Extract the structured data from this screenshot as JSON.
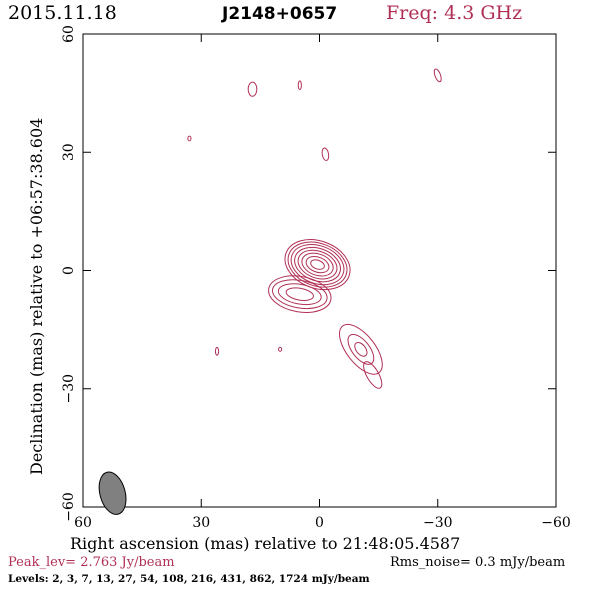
{
  "header": {
    "date": "2015.11.18",
    "source": "J2148+0657",
    "freq": "Freq: 4.3 GHz"
  },
  "chart_data": {
    "type": "contour",
    "xlabel": "Right ascension (mas) relative to 21:48:05.4587",
    "ylabel": "Declination (mas) relative to +06:57:38.604",
    "xlim": [
      60,
      -60
    ],
    "ylim": [
      -60,
      60
    ],
    "xticks": [
      60,
      30,
      0,
      -30,
      -60
    ],
    "yticks": [
      -60,
      -30,
      0,
      30,
      60
    ],
    "x_ticklabels": [
      "60",
      "30",
      "0",
      "−30",
      "−60"
    ],
    "y_ticklabels": [
      "−60",
      "−30",
      "0",
      "30",
      "60"
    ],
    "contour_color": "#b03055",
    "core": {
      "center": [
        0.5,
        1.5
      ],
      "rings": [
        [
          6.0,
          8.5,
          70
        ],
        [
          5.4,
          7.7,
          70
        ],
        [
          4.8,
          6.9,
          70
        ],
        [
          4.1,
          6.0,
          70
        ],
        [
          3.4,
          5.1,
          70
        ],
        [
          2.7,
          4.1,
          70
        ],
        [
          1.9,
          3.0,
          70
        ],
        [
          1.1,
          1.8,
          70
        ]
      ]
    },
    "core_extension": {
      "center": [
        5.0,
        -6.0
      ],
      "rings": [
        [
          4.5,
          8.0,
          80
        ],
        [
          3.5,
          7.0,
          80
        ],
        [
          2.5,
          5.5,
          80
        ],
        [
          1.5,
          3.5,
          80
        ]
      ]
    },
    "jet_blob": {
      "center": [
        -10.5,
        -20.0
      ],
      "rings": [
        [
          7.5,
          3.6,
          -52
        ],
        [
          4.5,
          2.2,
          -52
        ],
        [
          2.0,
          1.2,
          -52
        ]
      ]
    },
    "outer_blob": {
      "center": [
        -13.5,
        -26.5
      ],
      "rings": [
        [
          3.8,
          1.5,
          -60
        ]
      ]
    },
    "isolated": [
      {
        "x": 17,
        "y": 46,
        "rx": 1.1,
        "ry": 1.8,
        "angle": 0
      },
      {
        "x": 5,
        "y": 47,
        "rx": 0.4,
        "ry": 1.1,
        "angle": 0
      },
      {
        "x": -30,
        "y": 49.5,
        "rx": 0.7,
        "ry": 1.7,
        "angle": 20
      },
      {
        "x": 33,
        "y": 33.5,
        "rx": 0.4,
        "ry": 0.6,
        "angle": 0
      },
      {
        "x": -1.5,
        "y": 29.5,
        "rx": 0.8,
        "ry": 1.6,
        "angle": 10
      },
      {
        "x": 26,
        "y": -20.5,
        "rx": 0.4,
        "ry": 1.0,
        "angle": 0
      },
      {
        "x": 10,
        "y": -20,
        "rx": 0.4,
        "ry": 0.5,
        "angle": 0
      }
    ],
    "beam": {
      "x": 52.5,
      "y": -56.5,
      "major": 5.5,
      "minor": 3.2,
      "angle": 15,
      "color": "#808080"
    },
    "peak_label": "Peak_lev=  2.763 Jy/beam",
    "rms_label": "Rms_noise=  0.3 mJy/beam",
    "levels_label": "Levels:   2,   3,   7,   13,   27,   54,  108,  216,  431,  862,  1724  mJy/beam"
  }
}
